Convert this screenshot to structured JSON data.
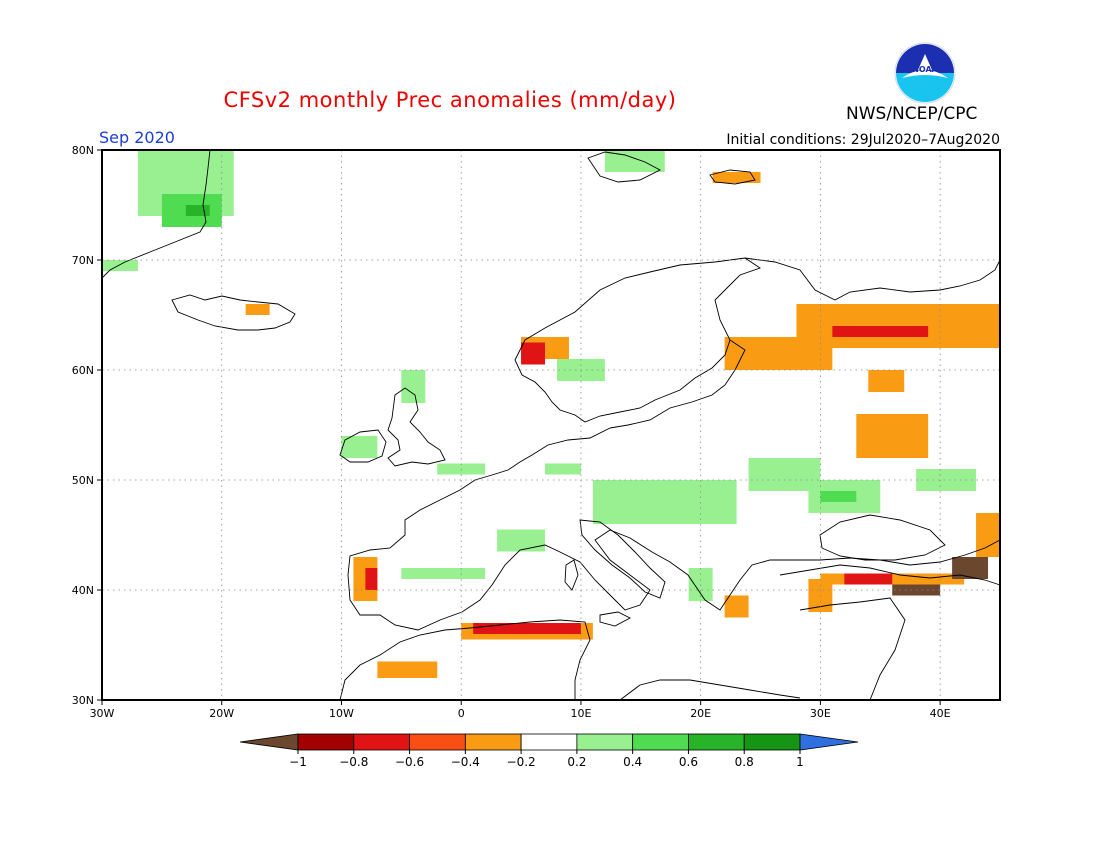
{
  "title": "CFSv2 monthly Prec anomalies (mm/day)",
  "org": "NWS/NCEP/CPC",
  "logo_text": "NOAA",
  "period": "Sep 2020",
  "initial_conditions": "Initial conditions: 29Jul2020–7Aug2020",
  "map": {
    "lon_range": [
      -30,
      45
    ],
    "lat_range": [
      30,
      80
    ],
    "lon_ticks": [
      {
        "lon": -30,
        "label": "30W"
      },
      {
        "lon": -20,
        "label": "20W"
      },
      {
        "lon": -10,
        "label": "10W"
      },
      {
        "lon": 0,
        "label": "0"
      },
      {
        "lon": 10,
        "label": "10E"
      },
      {
        "lon": 20,
        "label": "20E"
      },
      {
        "lon": 30,
        "label": "30E"
      },
      {
        "lon": 40,
        "label": "40E"
      }
    ],
    "lat_ticks": [
      {
        "lat": 30,
        "label": "30N"
      },
      {
        "lat": 40,
        "label": "40N"
      },
      {
        "lat": 50,
        "label": "50N"
      },
      {
        "lat": 60,
        "label": "60N"
      },
      {
        "lat": 70,
        "label": "70N"
      },
      {
        "lat": 80,
        "label": "80N"
      }
    ]
  },
  "colorbar": {
    "labels": [
      "−1",
      "−0.8",
      "−0.6",
      "−0.4",
      "−0.2",
      "0.2",
      "0.4",
      "0.6",
      "0.8",
      "1"
    ],
    "colors": {
      "below": "#6b4730",
      "bins": [
        "#a30000",
        "#e01414",
        "#fa4f14",
        "#fa9b14",
        "#ffffff",
        "#99f090",
        "#50dc50",
        "#28b428",
        "#149614"
      ],
      "above": "#2f6fe0"
    }
  },
  "anomaly_regions": [
    {
      "class": "light_green",
      "lon": -27,
      "lat": 74,
      "w": 8,
      "h": 6
    },
    {
      "class": "green",
      "lon": -25,
      "lat": 73,
      "w": 5,
      "h": 3
    },
    {
      "class": "dark_green",
      "lon": -23,
      "lat": 74,
      "w": 2,
      "h": 1
    },
    {
      "class": "light_green",
      "lon": -30,
      "lat": 69,
      "w": 3,
      "h": 1
    },
    {
      "class": "light_green",
      "lon": 12,
      "lat": 78,
      "w": 5,
      "h": 2
    },
    {
      "class": "orange",
      "lon": 21,
      "lat": 77,
      "w": 4,
      "h": 1
    },
    {
      "class": "orange",
      "lon": -18,
      "lat": 65,
      "w": 2,
      "h": 1
    },
    {
      "class": "light_green",
      "lon": -5,
      "lat": 57,
      "w": 2,
      "h": 3
    },
    {
      "class": "light_green",
      "lon": -10,
      "lat": 52,
      "w": 3,
      "h": 2
    },
    {
      "class": "orange",
      "lon": 5,
      "lat": 61,
      "w": 4,
      "h": 2
    },
    {
      "class": "red",
      "lon": 5,
      "lat": 60.5,
      "w": 2,
      "h": 2
    },
    {
      "class": "light_green",
      "lon": 8,
      "lat": 59,
      "w": 4,
      "h": 2
    },
    {
      "class": "orange",
      "lon": 22,
      "lat": 60,
      "w": 9,
      "h": 3
    },
    {
      "class": "orange",
      "lon": 28,
      "lat": 62,
      "w": 17,
      "h": 4
    },
    {
      "class": "red",
      "lon": 31,
      "lat": 63,
      "w": 8,
      "h": 1
    },
    {
      "class": "orange",
      "lon": 34,
      "lat": 58,
      "w": 3,
      "h": 2
    },
    {
      "class": "orange",
      "lon": 33,
      "lat": 52,
      "w": 6,
      "h": 4
    },
    {
      "class": "light_green",
      "lon": -2,
      "lat": 50.5,
      "w": 4,
      "h": 1
    },
    {
      "class": "light_green",
      "lon": 7,
      "lat": 50.5,
      "w": 3,
      "h": 1
    },
    {
      "class": "light_green",
      "lon": 11,
      "lat": 46,
      "w": 12,
      "h": 4
    },
    {
      "class": "light_green",
      "lon": 24,
      "lat": 49,
      "w": 6,
      "h": 3
    },
    {
      "class": "light_green",
      "lon": 29,
      "lat": 47,
      "w": 6,
      "h": 3
    },
    {
      "class": "green",
      "lon": 30,
      "lat": 48,
      "w": 3,
      "h": 1
    },
    {
      "class": "light_green",
      "lon": 38,
      "lat": 49,
      "w": 5,
      "h": 2
    },
    {
      "class": "light_green",
      "lon": 3,
      "lat": 43.5,
      "w": 4,
      "h": 2
    },
    {
      "class": "orange",
      "lon": -9,
      "lat": 39,
      "w": 2,
      "h": 4
    },
    {
      "class": "red",
      "lon": -8,
      "lat": 40,
      "w": 1,
      "h": 2
    },
    {
      "class": "light_green",
      "lon": -5,
      "lat": 41,
      "w": 7,
      "h": 1
    },
    {
      "class": "orange",
      "lon": 0,
      "lat": 35.5,
      "w": 11,
      "h": 1.5
    },
    {
      "class": "red",
      "lon": 1,
      "lat": 36,
      "w": 9,
      "h": 1
    },
    {
      "class": "orange",
      "lon": -7,
      "lat": 32,
      "w": 5,
      "h": 1.5
    },
    {
      "class": "light_green",
      "lon": 19,
      "lat": 39,
      "w": 2,
      "h": 3
    },
    {
      "class": "orange",
      "lon": 22,
      "lat": 37.5,
      "w": 2,
      "h": 2
    },
    {
      "class": "orange",
      "lon": 29,
      "lat": 38,
      "w": 2,
      "h": 3
    },
    {
      "class": "orange",
      "lon": 30,
      "lat": 40.5,
      "w": 12,
      "h": 1
    },
    {
      "class": "red",
      "lon": 32,
      "lat": 40.5,
      "w": 4,
      "h": 1
    },
    {
      "class": "brown",
      "lon": 36,
      "lat": 39.5,
      "w": 4,
      "h": 1
    },
    {
      "class": "brown",
      "lon": 41,
      "lat": 41,
      "w": 3,
      "h": 2
    },
    {
      "class": "orange",
      "lon": 43,
      "lat": 43,
      "w": 2,
      "h": 4
    }
  ]
}
